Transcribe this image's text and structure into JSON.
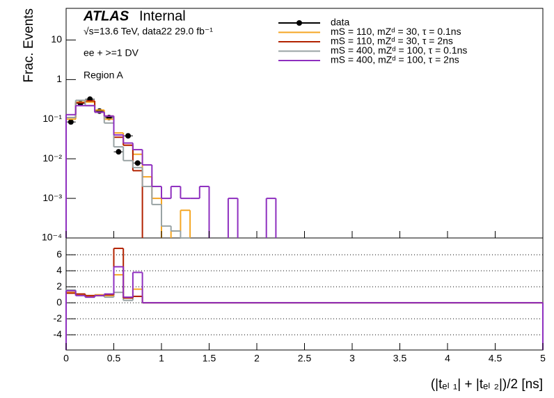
{
  "chart_data": [
    {
      "type": "histogram",
      "log_scale": true,
      "y_label": "Frac. Events",
      "title": "ATLAS",
      "title_suffix": "Internal",
      "subtitle": "√s=13.6 TeV, data22 29.0 fb⁻¹",
      "annotations": [
        "ee + >=1 DV",
        "Region A"
      ],
      "ylim": [
        0.0001,
        63
      ],
      "yticks": [
        {
          "value": 0.0001,
          "label": "10⁻⁴"
        },
        {
          "value": 0.001,
          "label": "10⁻³"
        },
        {
          "value": 0.01,
          "label": "10⁻²"
        },
        {
          "value": 0.1,
          "label": "10⁻¹"
        },
        1,
        10
      ],
      "bins": [
        0,
        0.1,
        0.2,
        0.3,
        0.4,
        0.5,
        0.6,
        0.7,
        0.8,
        0.9,
        1.0,
        1.1,
        1.2,
        1.3,
        1.4,
        1.5,
        1.6,
        1.7,
        1.8,
        1.9,
        2.0,
        2.1,
        2.2
      ],
      "series": [
        {
          "name": "data",
          "marker": "point",
          "color": "#000000",
          "values": [
            0.085,
            0.25,
            0.32,
            0.16,
            0.11,
            0.015,
            0.038,
            0.0078,
            null,
            null,
            null,
            null,
            null,
            null,
            null,
            null,
            null,
            null,
            null,
            null,
            null,
            null
          ]
        },
        {
          "name": "mS = 110, mZᵈ = 30, τ = 0.1ns",
          "color": "#f5a623",
          "values": [
            0.1,
            0.27,
            0.27,
            0.17,
            0.1,
            0.045,
            0.022,
            0.013,
            0.0035,
            0.001,
            null,
            0.00015,
            0.0005,
            null,
            null,
            null,
            null,
            null,
            null,
            null,
            null,
            null
          ]
        },
        {
          "name": "mS = 110, mZᵈ = 30, τ = 2ns",
          "color": "#b22200",
          "values": [
            0.11,
            0.26,
            0.29,
            0.15,
            0.12,
            0.035,
            0.022,
            0.005,
            null,
            null,
            null,
            null,
            null,
            null,
            null,
            null,
            null,
            null,
            null,
            null,
            null,
            null
          ]
        },
        {
          "name": "mS = 400, mZᵈ = 100, τ = 0.1ns",
          "color": "#99a3a4",
          "values": [
            0.11,
            0.3,
            0.22,
            0.15,
            0.08,
            0.02,
            0.009,
            0.006,
            0.002,
            0.0007,
            0.0002,
            0.00015,
            0.0001,
            null,
            null,
            null,
            null,
            null,
            null,
            null,
            null,
            null
          ]
        },
        {
          "name": "mS = 400, mZᵈ = 100, τ = 2ns",
          "color": "#8e2fbf",
          "values": [
            0.13,
            0.22,
            0.22,
            0.15,
            0.12,
            0.04,
            0.025,
            0.017,
            0.007,
            0.002,
            0.001,
            0.002,
            0.001,
            0.001,
            0.002,
            null,
            null,
            0.001,
            null,
            null,
            null,
            0.001
          ]
        }
      ]
    },
    {
      "type": "histogram",
      "x_label": "(|tₑₗ ₁| + |tₑₗ ₂|)/2 [ns]",
      "xlim": [
        0,
        5
      ],
      "xticks": [
        0,
        0.5,
        1,
        1.5,
        2,
        2.5,
        3,
        3.5,
        4,
        4.5,
        5
      ],
      "ylim": [
        -5.9,
        8.1
      ],
      "yticks": [
        -4,
        -2,
        0,
        2,
        4,
        6
      ],
      "grid": true,
      "bins": [
        0,
        0.1,
        0.2,
        0.3,
        0.4,
        0.5,
        0.6,
        0.7,
        0.8,
        5
      ],
      "series": [
        {
          "color": "#99a3a4",
          "values": [
            1.6,
            1.1,
            0.7,
            0.9,
            0.7,
            1.3,
            0.3,
            0.8,
            0
          ]
        },
        {
          "color": "#f5a623",
          "values": [
            1.3,
            1.0,
            0.85,
            1.0,
            0.9,
            3.5,
            0.6,
            1.7,
            0
          ]
        },
        {
          "color": "#b22200",
          "values": [
            1.2,
            1.1,
            0.9,
            0.9,
            1.0,
            6.8,
            0.6,
            0.8,
            0
          ]
        },
        {
          "color": "#8e2fbf",
          "values": [
            1.5,
            0.9,
            0.7,
            0.9,
            1.1,
            4.5,
            0.7,
            3.8,
            0
          ]
        }
      ]
    }
  ]
}
